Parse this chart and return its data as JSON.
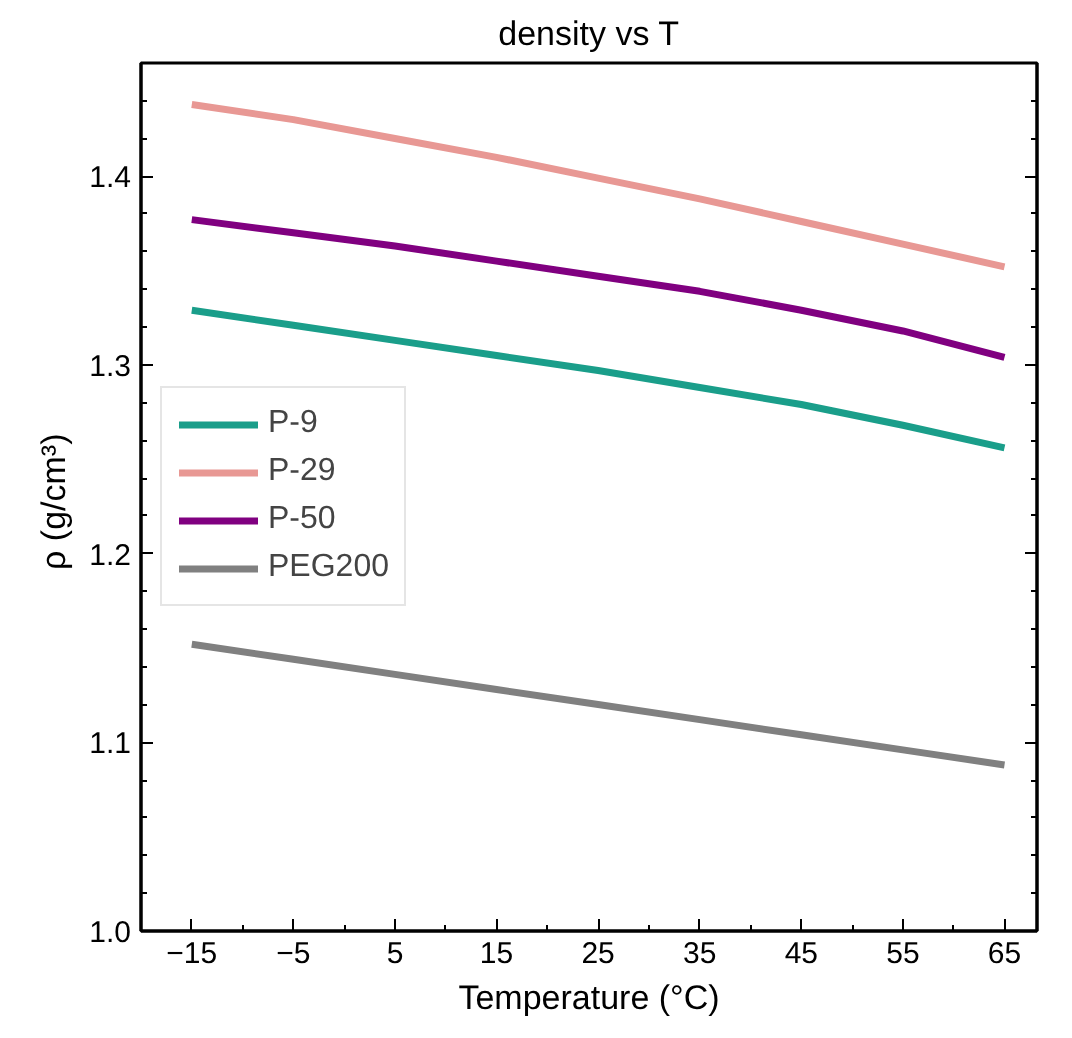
{
  "chart_data": {
    "type": "line",
    "title": "density vs T",
    "xlabel": "Temperature (°C)",
    "ylabel": "ρ  (g/cm³)",
    "x": [
      -15,
      -5,
      5,
      15,
      25,
      35,
      45,
      55,
      65
    ],
    "series": [
      {
        "name": "P-9",
        "color": "#1a9e8a",
        "values": [
          1.329,
          1.321,
          1.313,
          1.305,
          1.297,
          1.288,
          1.279,
          1.268,
          1.256
        ]
      },
      {
        "name": "P-29",
        "color": "#e89894",
        "values": [
          1.438,
          1.43,
          1.42,
          1.41,
          1.399,
          1.388,
          1.376,
          1.364,
          1.352
        ]
      },
      {
        "name": "P-50",
        "color": "#800080",
        "values": [
          1.377,
          1.37,
          1.363,
          1.355,
          1.347,
          1.339,
          1.329,
          1.318,
          1.304
        ]
      },
      {
        "name": "PEG200",
        "color": "#808080",
        "values": [
          1.152,
          1.144,
          1.136,
          1.128,
          1.12,
          1.112,
          1.104,
          1.096,
          1.088
        ]
      }
    ],
    "xlim": [
      -20,
      68.2
    ],
    "ylim": [
      1.0,
      1.46
    ],
    "xticks": [
      {
        "value": -15,
        "label": "−15"
      },
      {
        "value": -5,
        "label": "−5"
      },
      5,
      15,
      25,
      35,
      45,
      55,
      65
    ],
    "yticks": [
      {
        "value": 1.0,
        "label": "1.0"
      },
      1.1,
      1.2,
      1.3,
      1.4
    ],
    "grid": false,
    "legend": "center left",
    "line_style": "solid",
    "marker": "none"
  }
}
